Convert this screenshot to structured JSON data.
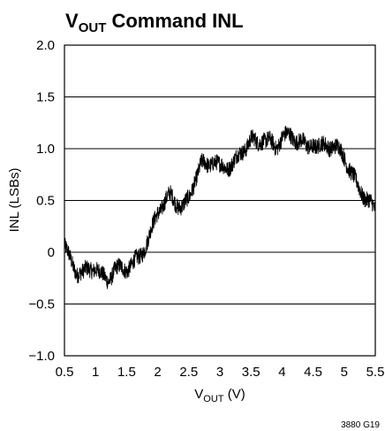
{
  "chart_data": {
    "type": "line",
    "title_prefix": "V",
    "title_subscript": "OUT",
    "title_suffix": " Command INL",
    "xlabel_prefix": "V",
    "xlabel_subscript": "OUT",
    "xlabel_suffix": " (V)",
    "ylabel": "INL (LSBs)",
    "xlim": [
      0.5,
      5.5
    ],
    "ylim": [
      -1.0,
      2.0
    ],
    "x_ticks": [
      0.5,
      1,
      1.5,
      2,
      2.5,
      3,
      3.5,
      4,
      4.5,
      5,
      5.5
    ],
    "x_tick_labels": [
      "0.5",
      "1",
      "1.5",
      "2",
      "2.5",
      "3",
      "3.5",
      "4",
      "4.5",
      "5",
      "5.5"
    ],
    "y_ticks": [
      -1.0,
      -0.5,
      0,
      0.5,
      1.0,
      1.5,
      2.0
    ],
    "y_tick_labels": [
      "−1.0",
      "−0.5",
      "0",
      "0.5",
      "1.0",
      "1.5",
      "2.0"
    ],
    "grid": "horizontal",
    "series": [
      {
        "color": "#000000",
        "x": [
          0.5,
          0.6,
          0.7,
          0.8,
          0.9,
          1.0,
          1.1,
          1.2,
          1.3,
          1.4,
          1.5,
          1.6,
          1.7,
          1.8,
          1.9,
          2.0,
          2.1,
          2.2,
          2.3,
          2.4,
          2.5,
          2.6,
          2.7,
          2.8,
          2.9,
          3.0,
          3.1,
          3.2,
          3.3,
          3.4,
          3.5,
          3.6,
          3.7,
          3.8,
          3.9,
          4.0,
          4.1,
          4.2,
          4.3,
          4.4,
          4.5,
          4.6,
          4.7,
          4.8,
          4.9,
          5.0,
          5.1,
          5.2,
          5.3,
          5.4,
          5.5
        ],
        "y": [
          0.1,
          -0.05,
          -0.2,
          -0.25,
          -0.2,
          -0.15,
          -0.2,
          -0.22,
          -0.15,
          -0.18,
          -0.2,
          -0.15,
          -0.05,
          0.1,
          0.25,
          0.4,
          0.45,
          0.5,
          0.45,
          0.45,
          0.55,
          0.75,
          0.85,
          0.8,
          0.85,
          0.8,
          0.85,
          0.9,
          0.95,
          1.0,
          1.05,
          1.0,
          1.1,
          1.1,
          1.05,
          1.15,
          1.1,
          1.05,
          1.05,
          1.0,
          1.1,
          1.05,
          1.05,
          1.0,
          0.95,
          0.9,
          0.8,
          0.7,
          0.6,
          0.5,
          0.35
        ],
        "noise_amplitude": 0.14
      }
    ]
  },
  "figure_code": "3880 G19"
}
